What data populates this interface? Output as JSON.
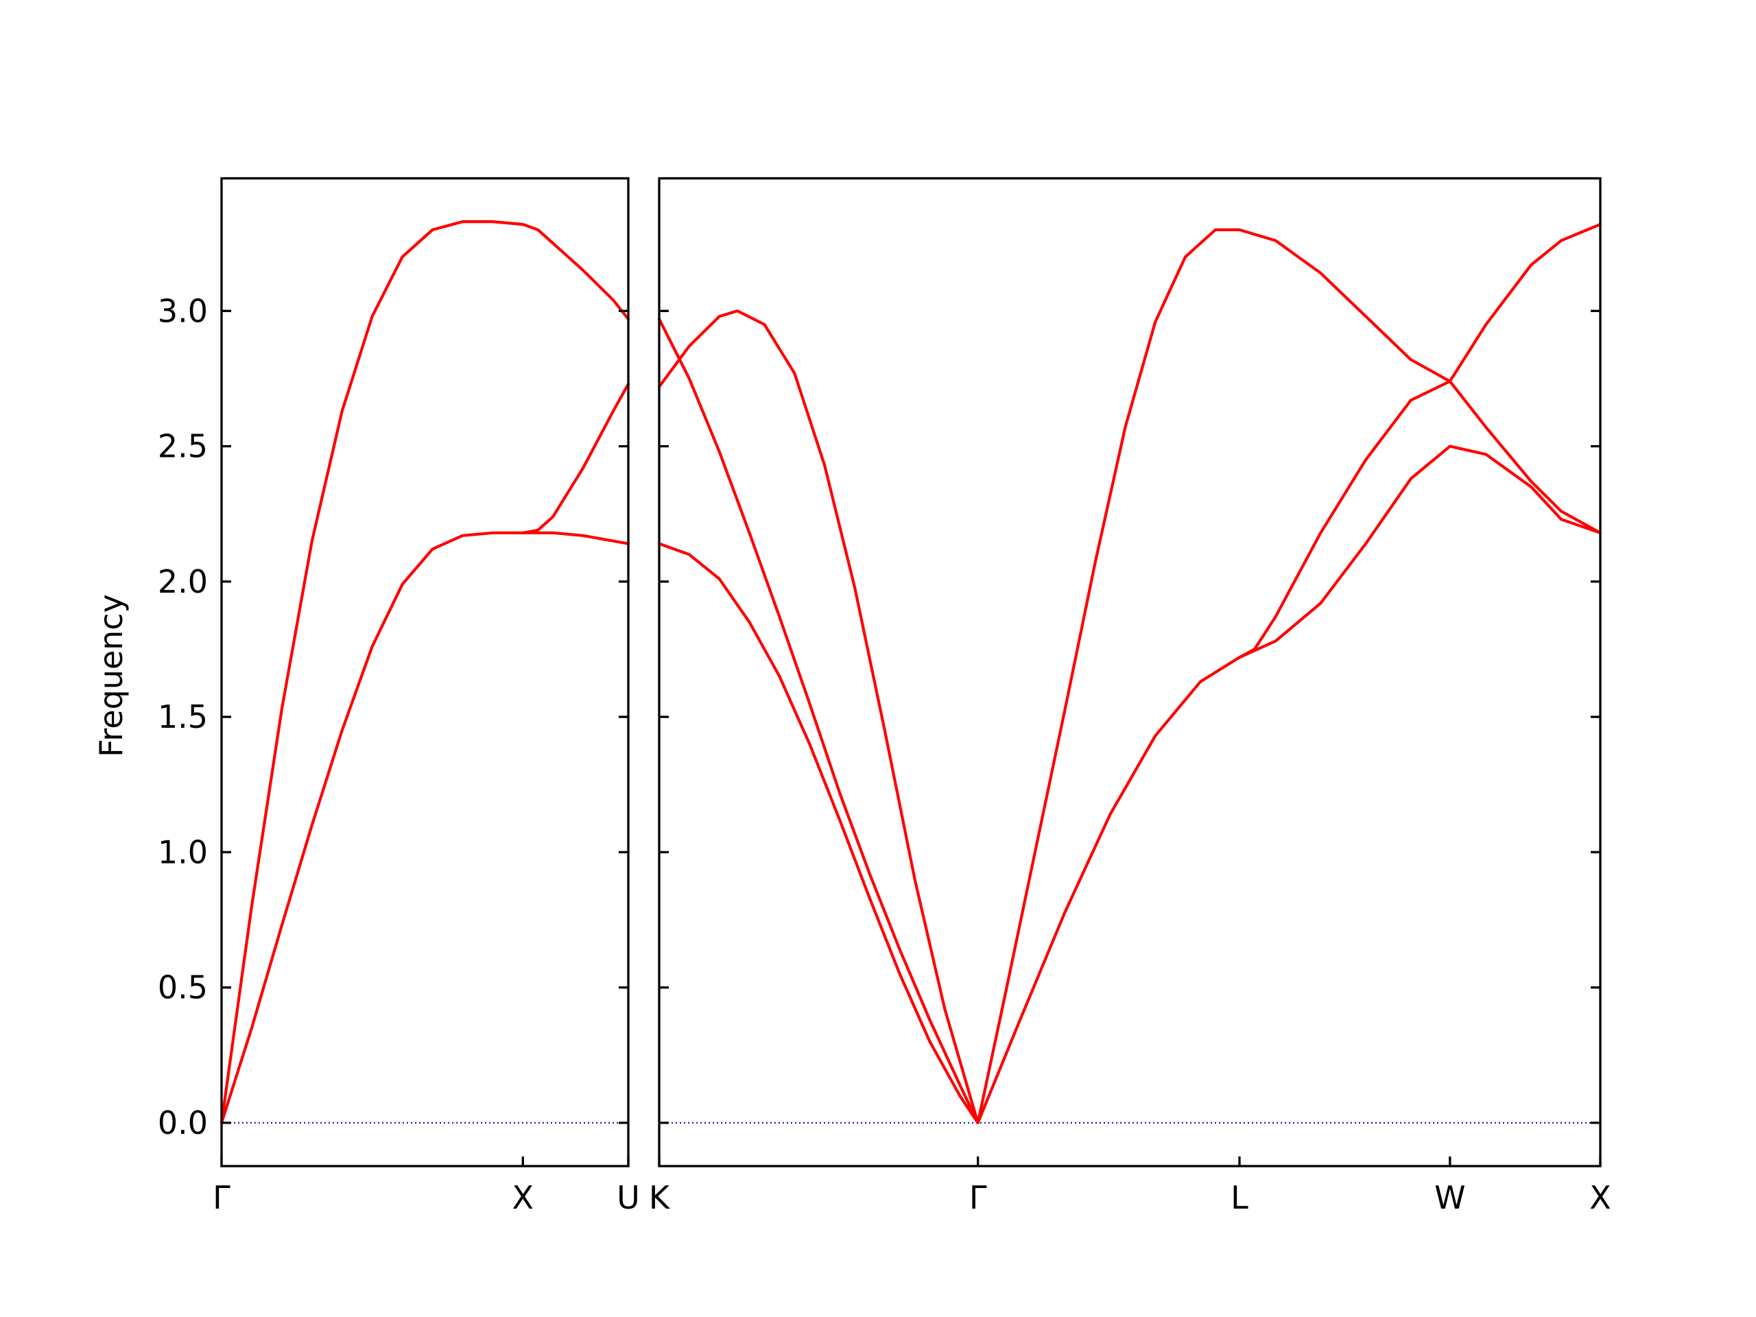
{
  "chart_data": {
    "type": "line",
    "title": "",
    "ylabel": "Frequency",
    "ylim": [
      -0.16,
      3.49
    ],
    "yticks": [
      "0.0",
      "0.5",
      "1.0",
      "1.5",
      "2.0",
      "2.5",
      "3.0"
    ],
    "grid": false,
    "band_color": "#ff0000",
    "zero_line_color": "#0000cc",
    "panels": [
      {
        "name": "left-panel",
        "xlim": [
          0,
          1.35
        ],
        "xticks": [
          {
            "pos": 0,
            "label": "Γ"
          },
          {
            "pos": 1.0,
            "label": "X"
          },
          {
            "pos": 1.35,
            "label": "U"
          }
        ],
        "series": [
          {
            "x": [
              0,
              0.1,
              0.2,
              0.3,
              0.4,
              0.5,
              0.6,
              0.7,
              0.8,
              0.9,
              1.0,
              1.05,
              1.1,
              1.2,
              1.3,
              1.35
            ],
            "y": [
              0,
              0.8,
              1.53,
              2.15,
              2.63,
              2.98,
              3.2,
              3.3,
              3.33,
              3.33,
              3.32,
              3.3,
              3.25,
              3.15,
              3.04,
              2.97
            ]
          },
          {
            "x": [
              0,
              0.1,
              0.2,
              0.3,
              0.4,
              0.5,
              0.6,
              0.7,
              0.8,
              0.9,
              1.0,
              1.05,
              1.1,
              1.2,
              1.3,
              1.35
            ],
            "y": [
              0,
              0.35,
              0.73,
              1.1,
              1.45,
              1.76,
              1.99,
              2.12,
              2.17,
              2.18,
              2.18,
              2.19,
              2.24,
              2.42,
              2.63,
              2.73
            ]
          },
          {
            "x": [
              1.0,
              1.05,
              1.1,
              1.2,
              1.3,
              1.35
            ],
            "y": [
              2.18,
              2.18,
              2.18,
              2.17,
              2.15,
              2.14
            ]
          }
        ]
      },
      {
        "name": "right-panel",
        "xlim": [
          0,
          3.13
        ],
        "xticks": [
          {
            "pos": 0,
            "label": "K"
          },
          {
            "pos": 1.06,
            "label": "Γ"
          },
          {
            "pos": 1.93,
            "label": "L"
          },
          {
            "pos": 2.63,
            "label": "W"
          },
          {
            "pos": 3.13,
            "label": "X"
          }
        ],
        "series": [
          {
            "x": [
              0,
              0.1,
              0.2,
              0.26,
              0.35,
              0.45,
              0.55,
              0.65,
              0.75,
              0.85,
              0.95,
              1.06
            ],
            "y": [
              2.72,
              2.87,
              2.98,
              3.0,
              2.95,
              2.77,
              2.43,
              1.98,
              1.45,
              0.9,
              0.42,
              0
            ]
          },
          {
            "x": [
              0,
              0.1,
              0.2,
              0.3,
              0.4,
              0.5,
              0.6,
              0.7,
              0.8,
              0.9,
              1.0,
              1.06
            ],
            "y": [
              2.97,
              2.75,
              2.48,
              2.18,
              1.87,
              1.55,
              1.22,
              0.92,
              0.64,
              0.38,
              0.14,
              0
            ]
          },
          {
            "x": [
              0,
              0.1,
              0.2,
              0.3,
              0.4,
              0.5,
              0.6,
              0.7,
              0.8,
              0.9,
              1.0,
              1.06
            ],
            "y": [
              2.14,
              2.1,
              2.01,
              1.85,
              1.65,
              1.4,
              1.12,
              0.83,
              0.55,
              0.3,
              0.1,
              0
            ]
          },
          {
            "x": [
              1.06,
              1.15,
              1.25,
              1.35,
              1.45,
              1.55,
              1.65,
              1.75,
              1.85,
              1.93,
              2.05,
              2.2,
              2.35,
              2.5,
              2.63,
              2.75,
              2.9,
              3.0,
              3.13
            ],
            "y": [
              0,
              0.47,
              1.0,
              1.53,
              2.07,
              2.57,
              2.96,
              3.2,
              3.3,
              3.3,
              3.26,
              3.14,
              2.98,
              2.82,
              2.74,
              2.57,
              2.37,
              2.26,
              2.18
            ]
          },
          {
            "x": [
              1.06,
              1.2,
              1.35,
              1.5,
              1.65,
              1.8,
              1.93,
              2.05,
              2.2,
              2.35,
              2.5,
              2.63,
              2.75,
              2.9,
              3.0,
              3.13
            ],
            "y": [
              0,
              0.38,
              0.78,
              1.14,
              1.43,
              1.63,
              1.72,
              1.78,
              1.92,
              2.14,
              2.38,
              2.5,
              2.47,
              2.35,
              2.23,
              2.18
            ]
          },
          {
            "x": [
              1.93,
              1.98,
              2.05,
              2.2,
              2.35,
              2.5,
              2.63,
              2.75,
              2.9,
              3.0,
              3.13
            ],
            "y": [
              1.72,
              1.75,
              1.87,
              2.18,
              2.45,
              2.67,
              2.74,
              2.95,
              3.17,
              3.26,
              3.32
            ]
          }
        ]
      }
    ]
  }
}
